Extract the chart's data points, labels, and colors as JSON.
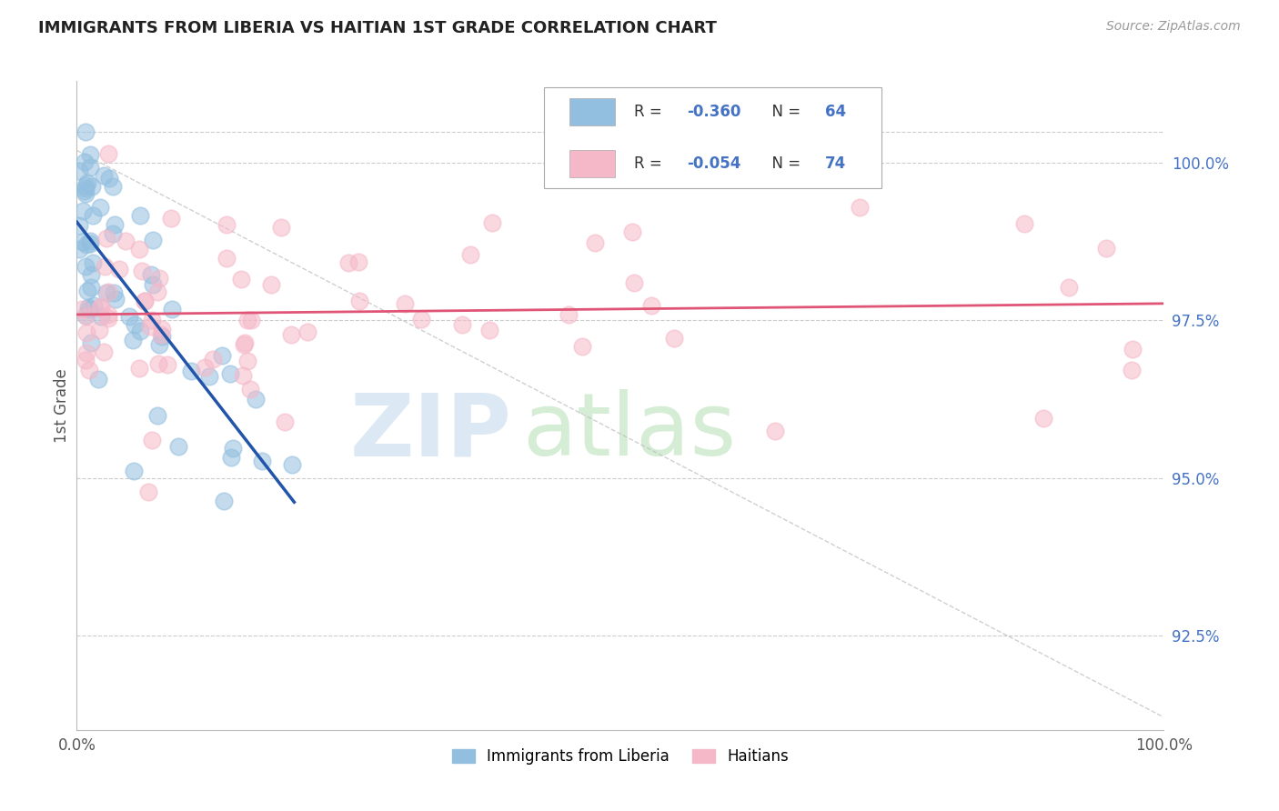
{
  "title": "IMMIGRANTS FROM LIBERIA VS HAITIAN 1ST GRADE CORRELATION CHART",
  "source": "Source: ZipAtlas.com",
  "ylabel": "1st Grade",
  "xlim": [
    0.0,
    100.0
  ],
  "ylim": [
    91.0,
    101.3
  ],
  "yticks": [
    92.5,
    95.0,
    97.5,
    100.0
  ],
  "ytick_labels": [
    "92.5%",
    "95.0%",
    "97.5%",
    "100.0%"
  ],
  "xtick_labels": [
    "0.0%",
    "100.0%"
  ],
  "legend_blue_r": "-0.360",
  "legend_blue_n": "64",
  "legend_pink_r": "-0.054",
  "legend_pink_n": "74",
  "legend_label_blue": "Immigrants from Liberia",
  "legend_label_pink": "Haitians",
  "blue_color": "#92bfdf",
  "pink_color": "#f5b8c8",
  "blue_line_color": "#2255aa",
  "pink_line_color": "#e05575",
  "diag_color": "#c0c0c0",
  "title_color": "#222222",
  "source_color": "#999999",
  "ytick_color": "#4472c4",
  "xtick_color": "#555555",
  "grid_color": "#cccccc",
  "background_color": "#ffffff",
  "watermark_zip": "ZIP",
  "watermark_atlas": "atlas",
  "watermark_zip_color": "#dde8f5",
  "watermark_atlas_color": "#d5ecd5"
}
